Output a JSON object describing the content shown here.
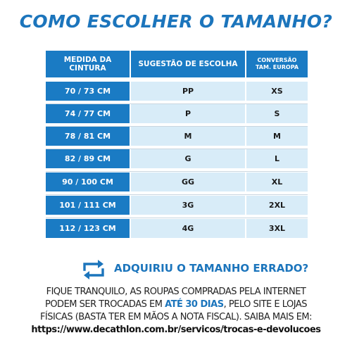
{
  "title": "COMO ESCOLHER O TAMANHO?",
  "table": {
    "headers": {
      "waist_line1": "MEDIDA DA",
      "waist_line2": "CINTURA",
      "suggestion": "SUGESTÃO DE ESCOLHA",
      "conversion_line1": "CONVERSÃO",
      "conversion_line2": "TAM. EUROPA"
    },
    "rows": [
      {
        "waist": "70 / 73 CM",
        "suggestion": "PP",
        "europe": "XS"
      },
      {
        "waist": "74 / 77 CM",
        "suggestion": "P",
        "europe": "S"
      },
      {
        "waist": "78 / 81 CM",
        "suggestion": "M",
        "europe": "M"
      },
      {
        "waist": "82 / 89 CM",
        "suggestion": "G",
        "europe": "L"
      },
      {
        "waist": "90 / 100 CM",
        "suggestion": "GG",
        "europe": "XL"
      },
      {
        "waist": "101 / 111 CM",
        "suggestion": "3G",
        "europe": "2XL"
      },
      {
        "waist": "112 / 123 CM",
        "suggestion": "4G",
        "europe": "3XL"
      }
    ]
  },
  "exchange": {
    "icon": "exchange-arrows-icon",
    "heading": "ADQUIRIU O TAMANHO ERRADO?",
    "line1": "FIQUE TRANQUILO, AS ROUPAS COMPRADAS PELA INTERNET",
    "line2_before": "PODEM SER TROCADAS EM ",
    "line2_highlight": "ATÉ 30 DIAS",
    "line2_after": ", PELO SITE E LOJAS",
    "line3": "FÍSICAS (BASTA TER EM MÃOS A NOTA FISCAL). SAIBA MAIS EM:",
    "link": "https://www.decathlon.com.br/servicos/trocas-e-devolucoes"
  },
  "colors": {
    "brand_blue": "#1c75bc",
    "header_blue": "#1a7bc4",
    "cell_light_blue": "#d8ecf8"
  }
}
